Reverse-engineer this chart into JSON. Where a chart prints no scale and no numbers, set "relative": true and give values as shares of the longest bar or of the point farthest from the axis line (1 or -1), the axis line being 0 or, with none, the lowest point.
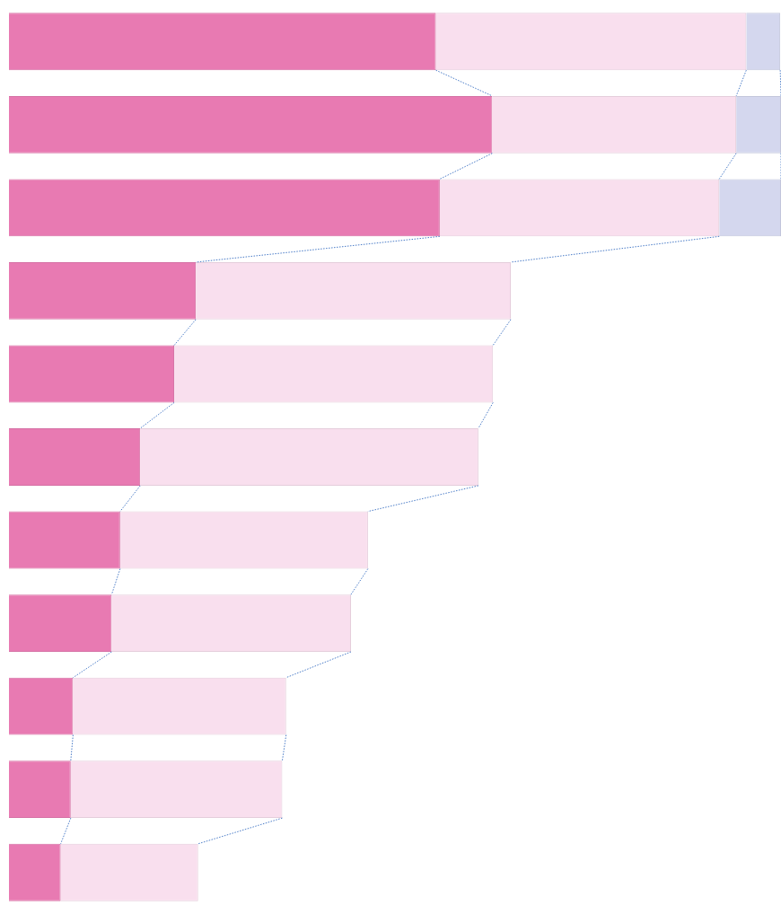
{
  "chart_data": {
    "type": "bar",
    "orientation": "horizontal",
    "stacked": true,
    "relative": true,
    "tick_labels": false,
    "legend": false,
    "categories": [
      null,
      null,
      null,
      null,
      null,
      null,
      null,
      null,
      null,
      null,
      null
    ],
    "series": [
      {
        "color": "#e87ab2",
        "values": [
          0.553,
          0.626,
          0.558,
          0.242,
          0.214,
          0.17,
          0.144,
          0.133,
          0.083,
          0.08,
          0.067
        ]
      },
      {
        "color": "#f9dfee",
        "values": [
          0.402,
          0.316,
          0.362,
          0.408,
          0.413,
          0.438,
          0.321,
          0.31,
          0.276,
          0.274,
          0.178
        ]
      },
      {
        "color": "#d4d7ee",
        "values": [
          0.044,
          0.058,
          0.08,
          null,
          null,
          null,
          null,
          null,
          null,
          null,
          null
        ]
      }
    ]
  }
}
